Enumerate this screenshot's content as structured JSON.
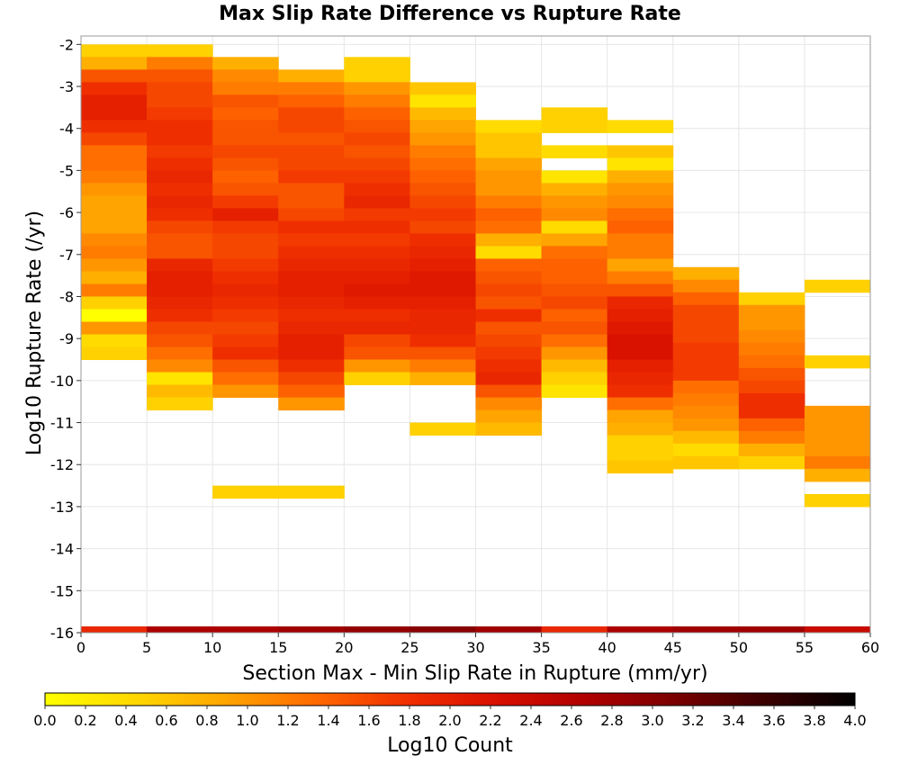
{
  "chart_data": {
    "type": "heatmap",
    "title": "Max Slip Rate Difference vs Rupture Rate",
    "xlabel": "Section Max - Min Slip Rate in Rupture (mm/yr)",
    "ylabel": "Log10 Rupture Rate (/yr)",
    "colorbar_label": "Log10 Count",
    "xlim": [
      0,
      60
    ],
    "ylim": [
      -16,
      -1.8
    ],
    "x_ticks": [
      "0",
      "5",
      "10",
      "15",
      "20",
      "25",
      "30",
      "35",
      "40",
      "45",
      "50",
      "55",
      "60"
    ],
    "y_ticks": [
      "-2",
      "-3",
      "-4",
      "-5",
      "-6",
      "-7",
      "-8",
      "-9",
      "-10",
      "-11",
      "-12",
      "-13",
      "-14",
      "-15",
      "-16"
    ],
    "colorbar_range": [
      0.0,
      4.0
    ],
    "colorbar_ticks": [
      "0.0",
      "0.2",
      "0.4",
      "0.6",
      "0.8",
      "1.0",
      "1.2",
      "1.4",
      "1.6",
      "1.8",
      "2.0",
      "2.2",
      "2.4",
      "2.6",
      "2.8",
      "3.0",
      "3.2",
      "3.4",
      "3.6",
      "3.8",
      "4.0"
    ],
    "colormap": [
      "#ffff00",
      "#ffd700",
      "#ffa500",
      "#ff6a00",
      "#f03000",
      "#d81000",
      "#b00000",
      "#7a0000",
      "#3a0000",
      "#000000"
    ],
    "bin_width_x": 5,
    "bin_height_y": 0.3,
    "grid": true,
    "columns": [
      {
        "x": 0,
        "y_start": -2.0,
        "values": [
          0.5,
          0.8,
          1.5,
          1.8,
          2.0,
          2.0,
          1.8,
          1.6,
          1.3,
          1.3,
          1.2,
          1.0,
          0.9,
          0.9,
          0.9,
          1.1,
          1.2,
          1.0,
          0.8,
          1.2,
          0.5,
          0.0,
          1.0,
          0.4,
          0.5
        ]
      },
      {
        "x": 5,
        "y_start": -2.0,
        "values": [
          0.5,
          1.2,
          1.5,
          1.6,
          1.6,
          1.7,
          1.8,
          1.8,
          1.7,
          1.8,
          1.9,
          1.8,
          1.9,
          1.8,
          1.6,
          1.5,
          1.5,
          1.9,
          2.0,
          2.0,
          1.9,
          1.8,
          1.6,
          1.5,
          1.3,
          1.1,
          0.3,
          0.7,
          0.5
        ]
      },
      {
        "x": 10,
        "y_start": -2.3,
        "values": [
          0.8,
          1.1,
          1.2,
          1.5,
          1.4,
          1.5,
          1.5,
          1.6,
          1.5,
          1.4,
          1.5,
          1.7,
          2.0,
          1.7,
          1.6,
          1.6,
          1.7,
          1.8,
          1.9,
          1.8,
          1.7,
          1.6,
          1.7,
          1.8,
          1.5,
          1.3,
          1.0,
          null,
          null,
          null,
          null,
          null,
          null,
          null,
          0.5
        ]
      },
      {
        "x": 15,
        "y_start": -2.6,
        "values": [
          0.8,
          1.2,
          1.4,
          1.6,
          1.6,
          1.5,
          1.6,
          1.6,
          1.7,
          1.5,
          1.5,
          1.6,
          1.8,
          1.7,
          1.8,
          1.9,
          2.0,
          2.0,
          1.9,
          1.8,
          1.9,
          2.0,
          2.0,
          1.8,
          1.6,
          1.4,
          1.0,
          null,
          null,
          null,
          null,
          null,
          null,
          0.5
        ]
      },
      {
        "x": 20,
        "y_start": -2.3,
        "values": [
          0.5,
          0.5,
          1.0,
          1.2,
          1.4,
          1.5,
          1.6,
          1.5,
          1.6,
          1.7,
          1.8,
          1.9,
          1.7,
          1.8,
          1.7,
          1.8,
          1.9,
          2.0,
          2.1,
          2.0,
          1.8,
          1.9,
          1.6,
          1.5,
          1.0,
          0.5
        ]
      },
      {
        "x": 25,
        "y_start": -2.9,
        "values": [
          0.6,
          0.3,
          0.7,
          0.9,
          1.0,
          1.2,
          1.3,
          1.4,
          1.5,
          1.6,
          1.7,
          1.6,
          1.8,
          1.9,
          2.0,
          2.1,
          2.1,
          2.0,
          1.9,
          1.9,
          1.8,
          1.5,
          1.2,
          0.8,
          null,
          null,
          null,
          0.5
        ]
      },
      {
        "x": 30,
        "y_start": -3.8,
        "values": [
          0.4,
          0.6,
          0.6,
          0.9,
          1.0,
          1.0,
          1.2,
          1.4,
          1.3,
          0.8,
          0.4,
          1.4,
          1.5,
          1.6,
          1.5,
          1.8,
          1.5,
          1.6,
          1.7,
          1.8,
          1.9,
          1.5,
          1.1,
          0.9,
          0.7
        ]
      },
      {
        "x": 35,
        "y_start": -3.5,
        "values": [
          0.5,
          0.5,
          null,
          0.4,
          null,
          0.3,
          0.8,
          1.0,
          1.1,
          0.4,
          0.9,
          1.3,
          1.4,
          1.4,
          1.5,
          1.6,
          1.4,
          1.5,
          1.3,
          1.0,
          0.7,
          0.5,
          0.3
        ]
      },
      {
        "x": 40,
        "y_start": -3.8,
        "values": [
          0.4,
          null,
          0.6,
          0.3,
          0.8,
          1.0,
          1.1,
          1.3,
          1.4,
          1.2,
          1.2,
          0.9,
          1.2,
          1.5,
          1.9,
          2.0,
          2.1,
          2.2,
          2.2,
          2.0,
          1.9,
          1.8,
          1.3,
          0.9,
          0.8,
          0.5,
          0.5,
          0.6
        ]
      },
      {
        "x": 45,
        "y_start": -7.3,
        "values": [
          0.8,
          1.1,
          1.4,
          1.6,
          1.6,
          1.6,
          1.7,
          1.7,
          1.7,
          1.3,
          1.2,
          1.1,
          1.0,
          0.7,
          0.4,
          0.6
        ]
      },
      {
        "x": 50,
        "y_start": -7.9,
        "values": [
          0.5,
          1.0,
          1.0,
          1.1,
          1.2,
          1.3,
          1.5,
          1.6,
          1.8,
          1.8,
          1.4,
          1.2,
          0.8,
          0.5
        ]
      },
      {
        "x": 55,
        "y_start": -7.6,
        "values": [
          0.5,
          null,
          null,
          null,
          null,
          null,
          0.5,
          null,
          null,
          null,
          1.0,
          1.0,
          1.0,
          1.0,
          1.2,
          0.8,
          null,
          0.5
        ]
      }
    ],
    "bottom_strip": {
      "y": -16.0,
      "values": [
        1.9,
        2.7,
        2.7,
        2.8,
        2.9,
        3.0,
        2.8,
        1.9,
        2.7,
        2.8,
        2.8,
        2.4
      ]
    }
  }
}
